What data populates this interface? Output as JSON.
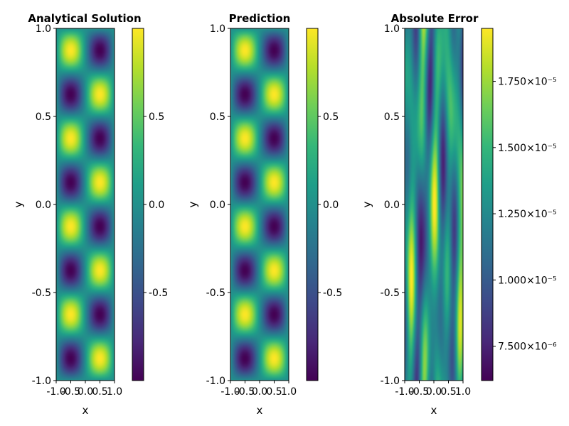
{
  "colormap": {
    "name": "viridis",
    "stops": [
      "#440154",
      "#482878",
      "#3e4989",
      "#31688e",
      "#26828e",
      "#1f9e89",
      "#35b779",
      "#6ece58",
      "#b5de2b",
      "#fde725"
    ]
  },
  "chart_data": [
    {
      "type": "heatmap",
      "title": "Analytical Solution",
      "xlabel": "x",
      "ylabel": "y",
      "xlim": [
        -1.0,
        1.0
      ],
      "ylim": [
        -1.0,
        1.0
      ],
      "x_ticks": [
        "-1.0",
        "-0.5",
        "0.0",
        "0.5",
        "1.0"
      ],
      "y_ticks": [
        "-1.0",
        "-0.5",
        "0.0",
        "0.5",
        "1.0"
      ],
      "field": "sin(pi*x)*sin(4*pi*y)",
      "colorbar": {
        "range": [
          -1.0,
          1.0
        ],
        "ticks": [
          "-0.5",
          "0.0",
          "0.5"
        ],
        "tick_values": [
          -0.5,
          0.0,
          0.5
        ]
      }
    },
    {
      "type": "heatmap",
      "title": "Prediction",
      "xlabel": "x",
      "ylabel": "y",
      "xlim": [
        -1.0,
        1.0
      ],
      "ylim": [
        -1.0,
        1.0
      ],
      "x_ticks": [
        "-1.0",
        "-0.5",
        "0.0",
        "0.5",
        "1.0"
      ],
      "y_ticks": [
        "-1.0",
        "-0.5",
        "0.0",
        "0.5",
        "1.0"
      ],
      "field": "sin(pi*x)*sin(4*pi*y)",
      "colorbar": {
        "range": [
          -1.0,
          1.0
        ],
        "ticks": [
          "-0.5",
          "0.0",
          "0.5"
        ],
        "tick_values": [
          -0.5,
          0.0,
          0.5
        ]
      }
    },
    {
      "type": "heatmap",
      "title": "Absolute Error",
      "xlabel": "x",
      "ylabel": "y",
      "xlim": [
        -1.0,
        1.0
      ],
      "ylim": [
        -1.0,
        1.0
      ],
      "x_ticks": [
        "-1.0",
        "-0.5",
        "0.0",
        "0.5",
        "1.0"
      ],
      "y_ticks": [
        "-1.0",
        "-0.5",
        "0.0",
        "0.5",
        "1.0"
      ],
      "field": "error",
      "colorbar": {
        "range": [
          6.2e-06,
          1.95e-05
        ],
        "ticks": [
          "7.500×10⁻⁶",
          "1.000×10⁻⁵",
          "1.250×10⁻⁵",
          "1.500×10⁻⁵",
          "1.750×10⁻⁵"
        ],
        "tick_values": [
          7.5e-06,
          1e-05,
          1.25e-05,
          1.5e-05,
          1.75e-05
        ]
      }
    }
  ]
}
